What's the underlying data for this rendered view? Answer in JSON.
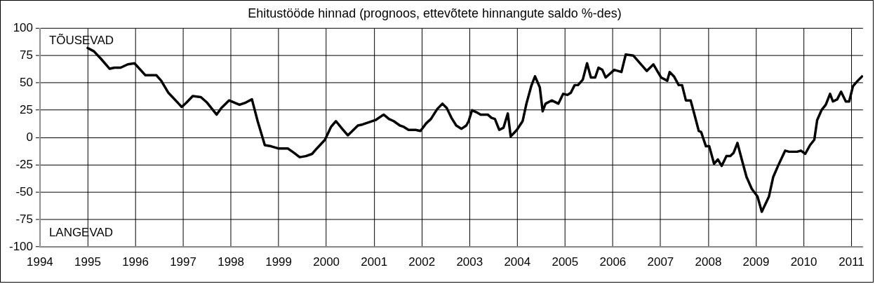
{
  "chart_data": {
    "type": "line",
    "title": "Ehitustööde hinnad (prognoos, ettevõtete hinnangute saldo %-des)",
    "annotations": [
      "TÕUSEVAD",
      "LANGEVAD"
    ],
    "series": [
      {
        "color": "#000000",
        "x": [
          1995.0,
          1995.13,
          1995.28,
          1995.46,
          1995.56,
          1995.69,
          1995.84,
          1995.98,
          1996.21,
          1996.44,
          1996.54,
          1996.69,
          1996.97,
          1997.07,
          1997.2,
          1997.37,
          1997.5,
          1997.7,
          1997.8,
          1997.96,
          1998.18,
          1998.31,
          1998.44,
          1998.56,
          1998.71,
          1998.84,
          1998.99,
          1999.19,
          1999.32,
          1999.44,
          1999.57,
          1999.7,
          1999.8,
          1999.97,
          2000.1,
          2000.2,
          2000.33,
          2000.45,
          2000.66,
          2000.76,
          2001.03,
          2001.2,
          2001.31,
          2001.41,
          2001.54,
          2001.61,
          2001.72,
          2001.87,
          2001.97,
          2002.09,
          2002.19,
          2002.32,
          2002.43,
          2002.52,
          2002.62,
          2002.72,
          2002.83,
          2002.93,
          2002.98,
          2003.05,
          2003.15,
          2003.23,
          2003.38,
          2003.46,
          2003.53,
          2003.62,
          2003.71,
          2003.8,
          2003.86,
          2003.99,
          2004.11,
          2004.19,
          2004.29,
          2004.37,
          2004.47,
          2004.53,
          2004.59,
          2004.72,
          2004.86,
          2004.96,
          2005.05,
          2005.12,
          2005.2,
          2005.27,
          2005.37,
          2005.46,
          2005.54,
          2005.63,
          2005.7,
          2005.78,
          2005.85,
          2006.03,
          2006.18,
          2006.27,
          2006.43,
          2006.53,
          2006.71,
          2006.85,
          2007.01,
          2007.14,
          2007.19,
          2007.28,
          2007.38,
          2007.45,
          2007.53,
          2007.63,
          2007.71,
          2007.8,
          2007.85,
          2007.95,
          2008.02,
          2008.12,
          2008.2,
          2008.28,
          2008.38,
          2008.46,
          2008.53,
          2008.61,
          2008.7,
          2008.8,
          2008.91,
          2009.03,
          2009.12,
          2009.27,
          2009.36,
          2009.46,
          2009.61,
          2009.69,
          2009.86,
          2009.94,
          2010.03,
          2010.13,
          2010.22,
          2010.28,
          2010.37,
          2010.46,
          2010.55,
          2010.61,
          2010.7,
          2010.78,
          2010.88,
          2010.95,
          2011.03,
          2011.13,
          2011.22
        ],
        "values": [
          82,
          79,
          72,
          63,
          64,
          64,
          67,
          68,
          57,
          57,
          52,
          41,
          28,
          32,
          38,
          37,
          32,
          21,
          27,
          34,
          30,
          32,
          35,
          15,
          -7,
          -8,
          -10,
          -10,
          -14,
          -18,
          -17,
          -15,
          -10,
          -2,
          10,
          15,
          8,
          2,
          11,
          12,
          16,
          21,
          17,
          15,
          11,
          10,
          7,
          7,
          6,
          13,
          17,
          26,
          31,
          27,
          18,
          11,
          8,
          11,
          15,
          25,
          23,
          21,
          21,
          18,
          17,
          7,
          9,
          22,
          1,
          7,
          15,
          31,
          47,
          56,
          46,
          24,
          31,
          34,
          31,
          40,
          39,
          41,
          48,
          48,
          53,
          68,
          55,
          55,
          64,
          62,
          55,
          62,
          60,
          76,
          75,
          70,
          61,
          67,
          55,
          52,
          60,
          56,
          48,
          48,
          34,
          34,
          21,
          6,
          5,
          -8,
          -8,
          -24,
          -20,
          -26,
          -17,
          -17,
          -14,
          -5,
          -20,
          -36,
          -47,
          -54,
          -68,
          -54,
          -36,
          -26,
          -12,
          -13,
          -13,
          -12,
          -15,
          -7,
          -2,
          16,
          25,
          30,
          40,
          33,
          35,
          42,
          33,
          33,
          47,
          52,
          56
        ]
      }
    ],
    "xlim": [
      1994,
      2011.24
    ],
    "xticks": [
      1994,
      1995,
      1996,
      1997,
      1998,
      1999,
      2000,
      2001,
      2002,
      2003,
      2004,
      2005,
      2006,
      2007,
      2008,
      2009,
      2010,
      2011
    ],
    "ylim": [
      -100,
      100
    ],
    "yticks": [
      -100,
      -75,
      -50,
      -25,
      0,
      25,
      50,
      75,
      100
    ],
    "grid": true,
    "legend": false,
    "marker": "none",
    "line_style": "solid"
  }
}
